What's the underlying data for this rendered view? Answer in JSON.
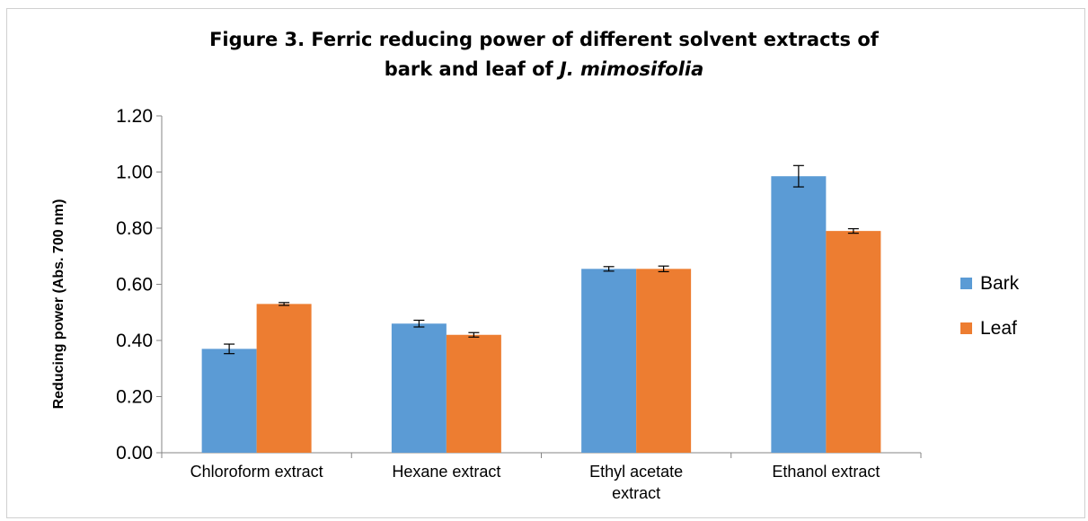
{
  "chart_data": {
    "type": "bar",
    "title": {
      "line1": "Figure 3. Ferric reducing power of different solvent extracts of",
      "line2_prefix": "bark and leaf of ",
      "line2_italic": "J. mimosifolia"
    },
    "ylabel": "Reducing power (Abs. 700 nm)",
    "xlabel": "",
    "ylim": [
      0,
      1.2
    ],
    "y_ticks": [
      "0.00",
      "0.20",
      "0.40",
      "0.60",
      "0.80",
      "1.00",
      "1.20"
    ],
    "categories": [
      [
        "Chloroform extract"
      ],
      [
        "Hexane extract"
      ],
      [
        "Ethyl acetate",
        "extract"
      ],
      [
        "Ethanol extract"
      ]
    ],
    "series": [
      {
        "name": "Bark",
        "color": "#5b9bd5",
        "values": [
          0.37,
          0.46,
          0.655,
          0.985
        ],
        "errors": [
          0.017,
          0.012,
          0.008,
          0.038
        ]
      },
      {
        "name": "Leaf",
        "color": "#ed7d31",
        "values": [
          0.53,
          0.42,
          0.655,
          0.79
        ],
        "errors": [
          0.005,
          0.008,
          0.01,
          0.008
        ]
      }
    ],
    "legend_position": "right",
    "grid": false
  }
}
